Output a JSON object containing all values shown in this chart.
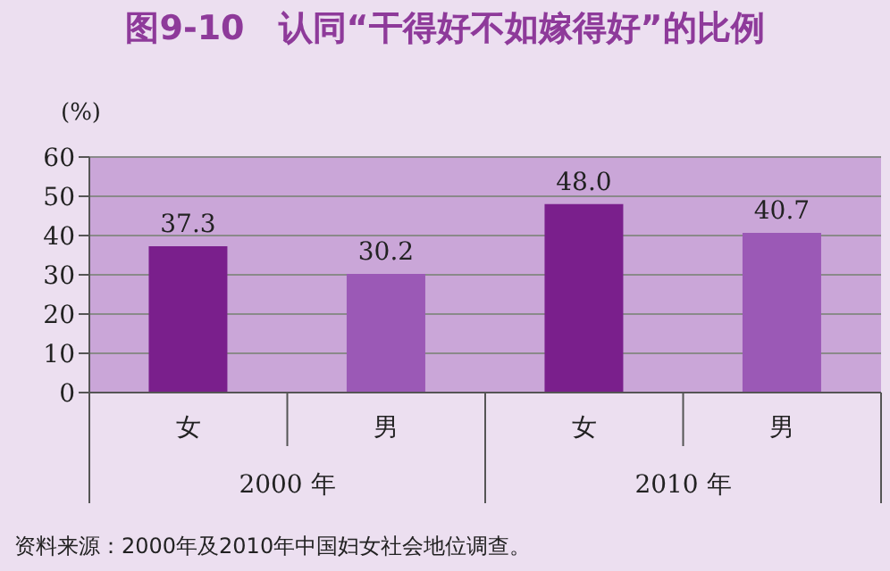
{
  "chart_data": {
    "type": "bar",
    "title": "图9-10　认同“干得好不如嫁得好”的比例",
    "ylabel": "(%)",
    "categories": [
      "女",
      "男",
      "女",
      "男"
    ],
    "values": [
      37.3,
      30.2,
      48.0,
      40.7
    ],
    "value_labels": [
      "37.3",
      "30.2",
      "48.0",
      "40.7"
    ],
    "colors": [
      "#7a1f8c",
      "#9b59b6",
      "#7a1f8c",
      "#9b59b6"
    ],
    "ylim": [
      0,
      60
    ],
    "yticks": [
      0,
      10,
      20,
      30,
      40,
      50,
      60
    ],
    "grid": "y",
    "annotations": [
      "2000 年",
      "2010 年",
      "资料来源：2000年及2010年中国妇女社会地位调查。"
    ]
  }
}
